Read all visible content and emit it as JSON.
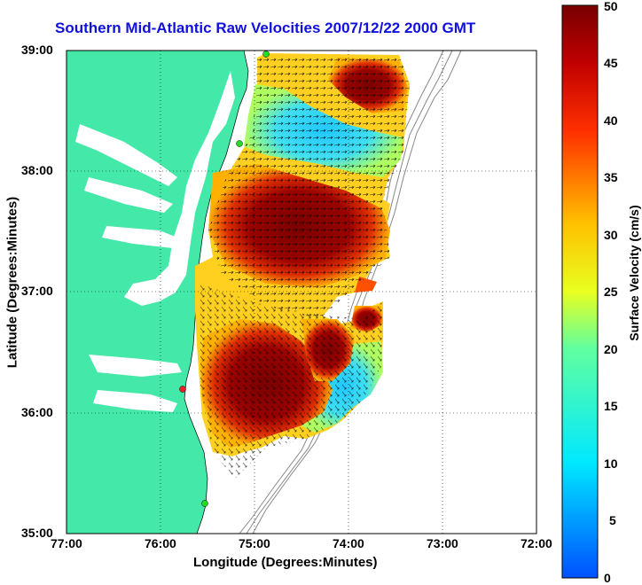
{
  "title": "Southern Mid-Atlantic Raw Velocities 2007/12/22 2000 GMT",
  "xlabel": "Longitude (Degrees:Minutes)",
  "ylabel": "Latitude (Degrees:Minutes)",
  "colorbar_label": "Surface Velocity (cm/s)",
  "x_ticks": [
    "77:00",
    "76:00",
    "75:00",
    "74:00",
    "73:00",
    "72:00"
  ],
  "y_ticks": [
    "39:00",
    "38:00",
    "37:00",
    "36:00",
    "35:00"
  ],
  "colorbar_ticks": [
    "50",
    "45",
    "40",
    "35",
    "30",
    "25",
    "20",
    "15",
    "10",
    "5",
    "0"
  ],
  "colors": {
    "land": "#44e8a8",
    "title": "#1010e0",
    "station_green": "#22dd22",
    "station_red": "#ee2222"
  },
  "colorbar_range": [
    0,
    50
  ],
  "lon_range": [
    -77,
    -72
  ],
  "lat_range": [
    35,
    39
  ]
}
